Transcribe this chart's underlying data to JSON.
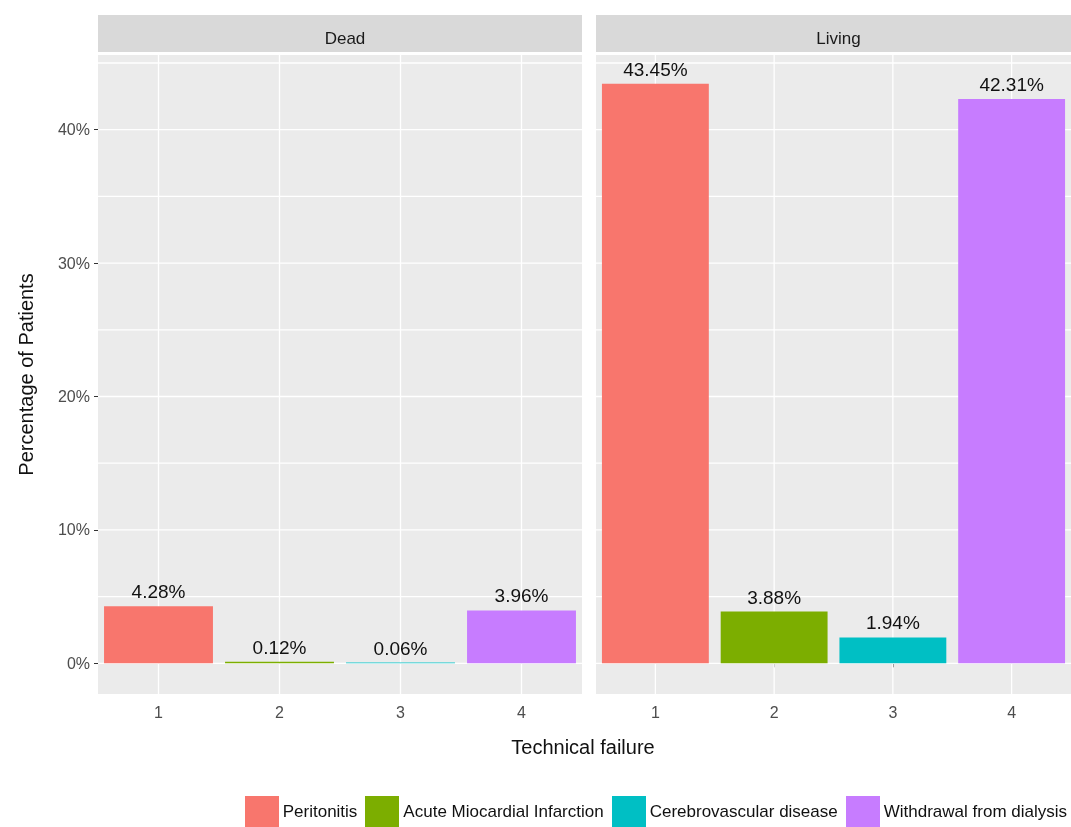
{
  "chart_data": [
    {
      "type": "bar",
      "title": "Dead",
      "xlabel": "Technical failure",
      "ylabel": "Percentage of Patients",
      "categories": [
        "1",
        "2",
        "3",
        "4"
      ],
      "series": [
        {
          "name": "Peritonitis",
          "color": "#f8766d",
          "values": [
            4.28,
            null,
            null,
            null
          ],
          "value_labels": [
            "4.28%",
            null,
            null,
            null
          ]
        },
        {
          "name": "Acute Miocardial Infarction",
          "color": "#7cae00",
          "values": [
            null,
            0.12,
            null,
            null
          ],
          "value_labels": [
            null,
            "0.12%",
            null,
            null
          ]
        },
        {
          "name": "Cerebrovascular disease",
          "color": "#00bfc4",
          "values": [
            null,
            null,
            0.06,
            null
          ],
          "value_labels": [
            null,
            null,
            "0.06%",
            null
          ]
        },
        {
          "name": "Withdrawal from dialysis",
          "color": "#c77cff",
          "values": [
            null,
            null,
            null,
            3.96
          ],
          "value_labels": [
            null,
            null,
            null,
            "3.96%"
          ]
        }
      ],
      "ylim": [
        -2.3,
        45.6
      ],
      "yticks": [
        {
          "value": 0,
          "label": "0%"
        },
        {
          "value": 5,
          "label": null
        },
        {
          "value": 10,
          "label": "10%"
        },
        {
          "value": 15,
          "label": null
        },
        {
          "value": 20,
          "label": "20%"
        },
        {
          "value": 25,
          "label": null
        },
        {
          "value": 30,
          "label": "30%"
        },
        {
          "value": 35,
          "label": null
        },
        {
          "value": 40,
          "label": "40%"
        },
        {
          "value": 45,
          "label": null
        }
      ],
      "grid": true,
      "legend": "bottom"
    },
    {
      "type": "bar",
      "title": "Living",
      "categories": [
        "1",
        "2",
        "3",
        "4"
      ],
      "series": [
        {
          "color": "#f8766d",
          "values": [
            43.45,
            null,
            null,
            null
          ],
          "value_labels": [
            "43.45%",
            null,
            null,
            null
          ]
        },
        {
          "color": "#7cae00",
          "values": [
            null,
            3.88,
            null,
            null
          ],
          "value_labels": [
            null,
            "3.88%",
            null,
            null
          ]
        },
        {
          "color": "#00bfc4",
          "values": [
            null,
            null,
            1.94,
            null
          ],
          "value_labels": [
            null,
            null,
            "1.94%",
            null
          ]
        },
        {
          "color": "#c77cff",
          "values": [
            null,
            null,
            null,
            42.31
          ],
          "value_labels": [
            null,
            null,
            null,
            "42.31%"
          ]
        }
      ],
      "ylim": [
        -2.3,
        45.6
      ],
      "yticks": [
        {
          "value": 0,
          "label": null
        },
        {
          "value": 5,
          "label": null
        },
        {
          "value": 10,
          "label": null
        },
        {
          "value": 15,
          "label": null
        },
        {
          "value": 20,
          "label": null
        },
        {
          "value": 25,
          "label": null
        },
        {
          "value": 30,
          "label": null
        },
        {
          "value": 35,
          "label": null
        },
        {
          "value": 40,
          "label": null
        },
        {
          "value": 45,
          "label": null
        }
      ],
      "grid": true,
      "tick_labels": "x"
    }
  ]
}
